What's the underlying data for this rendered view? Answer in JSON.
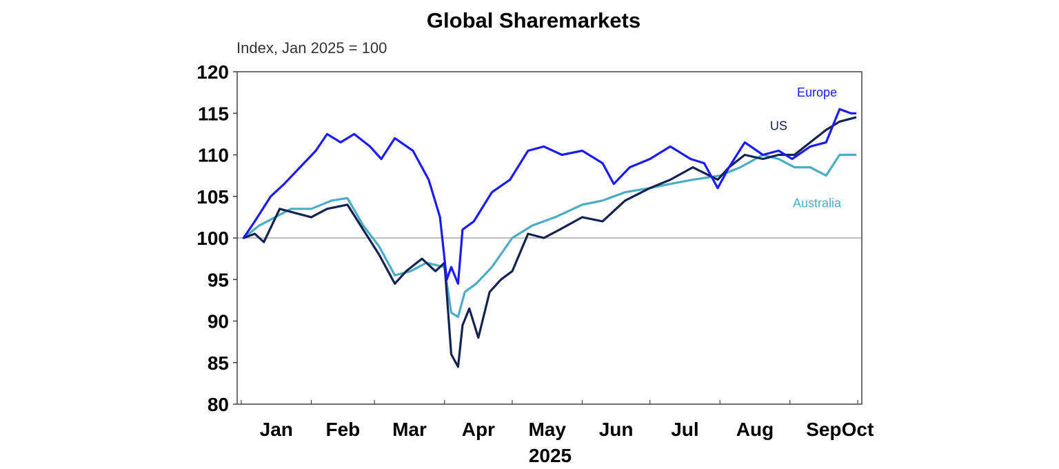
{
  "chart_data": {
    "type": "line",
    "title": "Global Sharemarkets",
    "subtitle": "Index, Jan 2025 = 100",
    "xlabel": "2025",
    "ylabel": "",
    "ylim": [
      80,
      120
    ],
    "yticks": [
      120,
      115,
      110,
      105,
      100,
      95,
      90,
      85,
      80
    ],
    "xlim": [
      "2025-01-01",
      "2025-10-01"
    ],
    "month_ticks": [
      "Jan",
      "Feb",
      "Mar",
      "Apr",
      "May",
      "Jun",
      "Jul",
      "Aug",
      "Sep",
      "Oct"
    ],
    "reference_line": 100,
    "grid": false,
    "colors": {
      "Europe": "#1a1aff",
      "US": "#14224f",
      "Australia": "#4bacc6",
      "reference": "#a6a6a6"
    },
    "series": [
      {
        "name": "Europe",
        "label": "Europe",
        "x": [
          "2025-01-02",
          "2025-01-07",
          "2025-01-14",
          "2025-01-20",
          "2025-01-27",
          "2025-02-03",
          "2025-02-08",
          "2025-02-14",
          "2025-02-20",
          "2025-02-27",
          "2025-03-04",
          "2025-03-10",
          "2025-03-18",
          "2025-03-25",
          "2025-03-30",
          "2025-04-02",
          "2025-04-04",
          "2025-04-07",
          "2025-04-09",
          "2025-04-14",
          "2025-04-22",
          "2025-04-30",
          "2025-05-08",
          "2025-05-15",
          "2025-05-23",
          "2025-06-01",
          "2025-06-10",
          "2025-06-15",
          "2025-06-22",
          "2025-07-01",
          "2025-07-10",
          "2025-07-19",
          "2025-07-25",
          "2025-07-31",
          "2025-08-05",
          "2025-08-12",
          "2025-08-20",
          "2025-08-27",
          "2025-09-02",
          "2025-09-10",
          "2025-09-17",
          "2025-09-23",
          "2025-09-28",
          "2025-09-30"
        ],
        "values": [
          100,
          102,
          105,
          106.5,
          108.5,
          110.5,
          112.5,
          111.5,
          112.5,
          111,
          109.5,
          112,
          110.5,
          107,
          102.5,
          95,
          96.5,
          94.5,
          101,
          102,
          105.5,
          107,
          110.5,
          111,
          110,
          110.5,
          109,
          106.5,
          108.5,
          109.5,
          111,
          109.5,
          109,
          106,
          108.5,
          111.5,
          110,
          110.5,
          109.5,
          111,
          111.5,
          115.5,
          115,
          115
        ]
      },
      {
        "name": "US",
        "label": "US",
        "x": [
          "2025-01-02",
          "2025-01-07",
          "2025-01-11",
          "2025-01-18",
          "2025-01-25",
          "2025-02-01",
          "2025-02-08",
          "2025-02-17",
          "2025-02-24",
          "2025-03-03",
          "2025-03-10",
          "2025-03-15",
          "2025-03-22",
          "2025-03-28",
          "2025-04-01",
          "2025-04-04",
          "2025-04-07",
          "2025-04-09",
          "2025-04-12",
          "2025-04-16",
          "2025-04-21",
          "2025-04-26",
          "2025-05-01",
          "2025-05-08",
          "2025-05-15",
          "2025-05-22",
          "2025-06-01",
          "2025-06-10",
          "2025-06-20",
          "2025-07-01",
          "2025-07-10",
          "2025-07-20",
          "2025-07-31",
          "2025-08-05",
          "2025-08-12",
          "2025-08-20",
          "2025-08-27",
          "2025-09-03",
          "2025-09-10",
          "2025-09-17",
          "2025-09-23",
          "2025-09-30"
        ],
        "values": [
          100,
          100.5,
          99.5,
          103.5,
          103,
          102.5,
          103.5,
          104,
          101,
          98,
          94.5,
          96,
          97.5,
          96,
          97,
          86,
          84.5,
          89.5,
          91.5,
          88,
          93.5,
          95,
          96,
          100.5,
          100,
          101,
          102.5,
          102,
          104.5,
          106,
          107,
          108.5,
          107,
          108.5,
          110,
          109.5,
          110,
          110,
          111.5,
          113,
          114,
          114.5
        ]
      },
      {
        "name": "Australia",
        "label": "Australia",
        "x": [
          "2025-01-02",
          "2025-01-09",
          "2025-01-16",
          "2025-01-23",
          "2025-02-01",
          "2025-02-10",
          "2025-02-17",
          "2025-02-24",
          "2025-03-03",
          "2025-03-10",
          "2025-03-17",
          "2025-03-24",
          "2025-04-01",
          "2025-04-04",
          "2025-04-07",
          "2025-04-10",
          "2025-04-15",
          "2025-04-22",
          "2025-05-01",
          "2025-05-10",
          "2025-05-20",
          "2025-06-01",
          "2025-06-10",
          "2025-06-20",
          "2025-07-01",
          "2025-07-10",
          "2025-07-20",
          "2025-08-01",
          "2025-08-10",
          "2025-08-20",
          "2025-08-27",
          "2025-09-03",
          "2025-09-10",
          "2025-09-17",
          "2025-09-23",
          "2025-09-30"
        ],
        "values": [
          100,
          101.5,
          102.5,
          103.5,
          103.5,
          104.5,
          104.8,
          101.5,
          99,
          95.5,
          96,
          97,
          96.5,
          91,
          90.5,
          93.5,
          94.5,
          96.5,
          100,
          101.5,
          102.5,
          104,
          104.5,
          105.5,
          106,
          106.5,
          107,
          107.5,
          108.5,
          110,
          109.5,
          108.5,
          108.5,
          107.5,
          110,
          110
        ]
      }
    ]
  }
}
